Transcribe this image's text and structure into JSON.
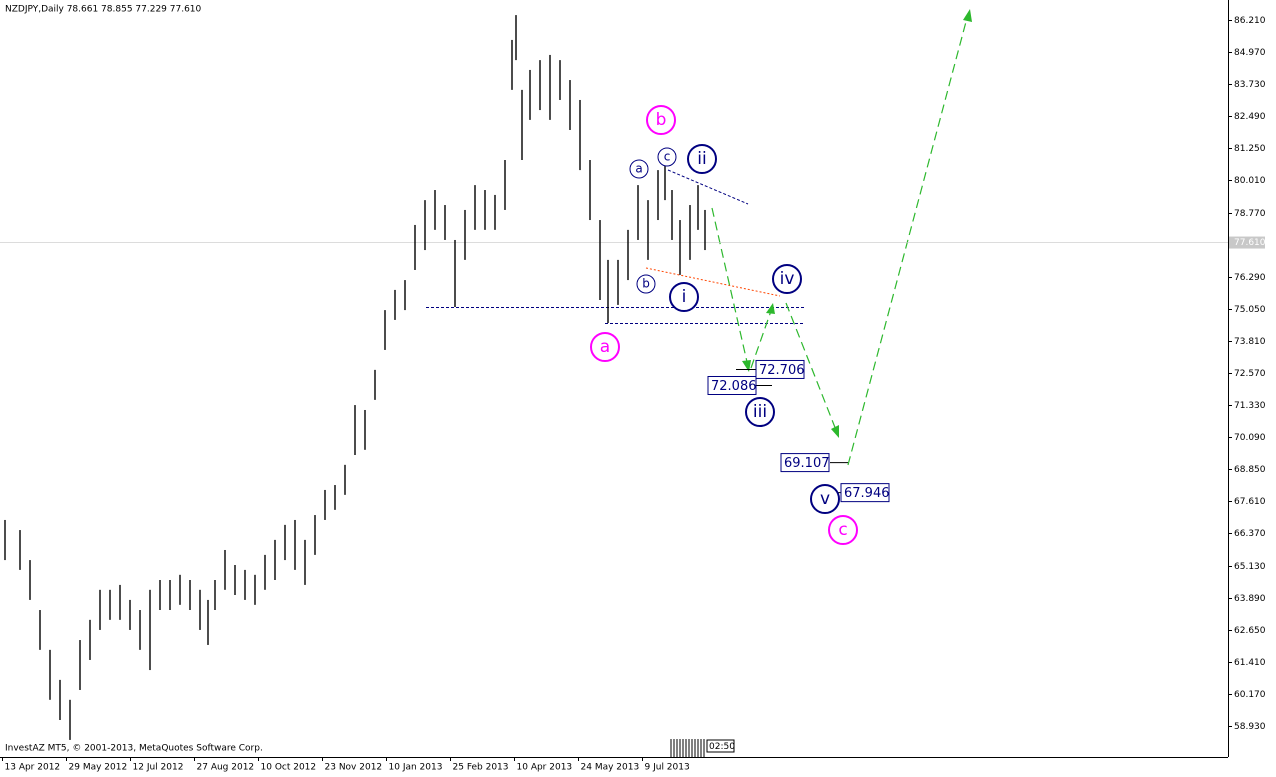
{
  "chart_data": {
    "type": "ohlc",
    "title": "NZDJPY,Daily  78.661 78.855 77.229 77.610",
    "copyright": "InvestAZ MT5, © 2001-2013, MetaQuotes Software Corp.",
    "time_box": "02:50",
    "color": "#000000",
    "x": [
      2.5,
      10,
      15,
      20,
      25,
      30,
      35,
      40,
      45,
      50,
      55,
      60,
      65,
      70,
      75,
      80,
      85,
      90,
      95,
      100,
      104,
      107.5,
      112.5,
      117.5,
      122.5,
      127.5,
      132.5,
      137.5,
      142.5,
      147.5,
      152.5,
      157.5,
      162.5,
      167.5,
      172.5,
      177.5,
      182.5,
      187.5,
      192.5,
      197.5,
      202.5,
      207.5,
      212.5,
      217.5,
      222.5,
      227.5,
      232.5,
      237.5,
      242.5,
      247.5,
      252.5,
      256,
      258,
      261,
      265,
      270,
      275,
      280,
      285,
      290,
      295,
      300,
      304,
      309,
      314,
      319,
      324,
      329,
      332.5,
      336,
      340,
      345,
      349,
      352.5
    ],
    "high": [
      66.89,
      66.5,
      65.34,
      63.41,
      61.87,
      60.71,
      59.94,
      62.25,
      63.03,
      64.19,
      64.19,
      64.38,
      63.8,
      63.41,
      64.19,
      64.57,
      64.57,
      64.77,
      64.57,
      64.19,
      63.8,
      64.57,
      65.73,
      65.15,
      64.96,
      64.77,
      65.54,
      66.12,
      66.7,
      66.89,
      66.12,
      67.08,
      68.05,
      68.24,
      69.02,
      71.33,
      71.14,
      72.69,
      75.0,
      75.78,
      76.16,
      78.29,
      79.25,
      79.64,
      79.06,
      77.71,
      78.87,
      79.83,
      79.64,
      79.45,
      80.8,
      85.44,
      86.4,
      83.51,
      84.28,
      84.66,
      84.86,
      84.66,
      83.89,
      83.12,
      80.8,
      78.48,
      76.94,
      76.94,
      78.1,
      79.83,
      79.25,
      80.41,
      80.61,
      79.64,
      78.48,
      79.06,
      79.83,
      78.87
    ],
    "low": [
      65.34,
      64.96,
      63.8,
      61.87,
      59.94,
      59.16,
      58.39,
      60.32,
      61.48,
      62.64,
      63.03,
      63.03,
      62.64,
      61.87,
      61.09,
      63.41,
      63.41,
      63.61,
      63.41,
      62.64,
      62.06,
      63.41,
      64.19,
      63.99,
      63.8,
      63.61,
      64.19,
      64.57,
      65.34,
      64.96,
      64.38,
      65.54,
      66.89,
      67.28,
      67.86,
      69.4,
      69.6,
      71.53,
      73.46,
      74.62,
      75.0,
      76.55,
      77.32,
      78.1,
      77.71,
      75.12,
      76.94,
      78.1,
      78.1,
      78.1,
      78.87,
      83.51,
      84.66,
      80.8,
      82.35,
      82.73,
      82.35,
      83.12,
      81.96,
      80.41,
      78.48,
      75.39,
      74.5,
      75.2,
      76.16,
      77.71,
      76.94,
      78.48,
      79.25,
      77.71,
      76.36,
      76.94,
      78.1,
      77.32
    ],
    "xlim": [
      0,
      614
    ],
    "ylim": [
      57.73,
      86.983
    ],
    "xticks": [
      {
        "value": 1,
        "label": "13 Apr 2012"
      },
      {
        "value": 33,
        "label": "29 May 2012"
      },
      {
        "value": 65,
        "label": "12 Jul 2012"
      },
      {
        "value": 97,
        "label": "27 Aug 2012"
      },
      {
        "value": 129,
        "label": "10 Oct 2012"
      },
      {
        "value": 161,
        "label": "23 Nov 2012"
      },
      {
        "value": 193,
        "label": "10 Jan 2013"
      },
      {
        "value": 225,
        "label": "25 Feb 2013"
      },
      {
        "value": 257,
        "label": "10 Apr 2013"
      },
      {
        "value": 289,
        "label": "24 May 2013"
      },
      {
        "value": 321,
        "label": "9 Jul 2013"
      }
    ],
    "yticks": [
      {
        "value": 86.21,
        "label": "86.210"
      },
      {
        "value": 84.97,
        "label": "84.970"
      },
      {
        "value": 83.73,
        "label": "83.730"
      },
      {
        "value": 82.49,
        "label": "82.490"
      },
      {
        "value": 81.25,
        "label": "81.250"
      },
      {
        "value": 80.01,
        "label": "80.010"
      },
      {
        "value": 78.77,
        "label": "78.770"
      },
      {
        "value": 76.29,
        "label": "76.290"
      },
      {
        "value": 75.05,
        "label": "75.050"
      },
      {
        "value": 73.81,
        "label": "73.810"
      },
      {
        "value": 72.57,
        "label": "72.570"
      },
      {
        "value": 71.33,
        "label": "71.330"
      },
      {
        "value": 70.09,
        "label": "70.090"
      },
      {
        "value": 68.85,
        "label": "68.850"
      },
      {
        "value": 67.61,
        "label": "67.610"
      },
      {
        "value": 66.37,
        "label": "66.370"
      },
      {
        "value": 65.13,
        "label": "65.130"
      },
      {
        "value": 63.89,
        "label": "63.890"
      },
      {
        "value": 62.65,
        "label": "62.650"
      },
      {
        "value": 61.41,
        "label": "61.410"
      },
      {
        "value": 60.17,
        "label": "60.170"
      },
      {
        "value": 58.93,
        "label": "58.930"
      }
    ],
    "last_price": {
      "value": 77.61,
      "label": "77.610"
    },
    "levels": [
      72.706,
      72.086,
      69.107,
      67.946
    ],
    "level_color": "#000080",
    "waves": [
      {
        "label": "b",
        "color": "#ff00ff"
      },
      {
        "label": "a",
        "color": "#ff00ff"
      },
      {
        "label": "c",
        "color": "#ff00ff"
      },
      {
        "label": "ii",
        "color": "#000080"
      },
      {
        "label": "i",
        "color": "#000080"
      },
      {
        "label": "iv",
        "color": "#000080"
      },
      {
        "label": "iii",
        "color": "#000080"
      },
      {
        "label": "v",
        "color": "#000080"
      },
      {
        "label": "a",
        "color": "#000080"
      },
      {
        "label": "c",
        "color": "#000080"
      },
      {
        "label": "b",
        "color": "#000080"
      }
    ]
  }
}
